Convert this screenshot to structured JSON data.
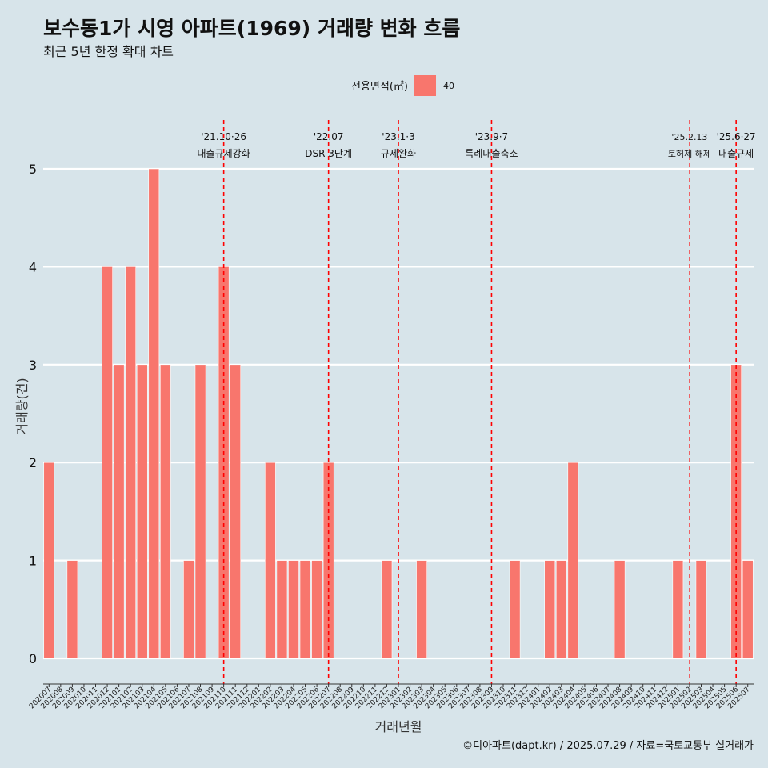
{
  "header": {
    "title": "보수동1가 시영 아파트(1969) 거래량 변화 흐름",
    "subtitle": "최근 5년 한정 확대 차트"
  },
  "legend": {
    "title": "전용면적(㎡)",
    "items": [
      {
        "label": "40",
        "color": "#f8766d"
      }
    ]
  },
  "caption": "©디아파트(dapt.kr) / 2025.07.29 / 자료=국토교통부 실거래가",
  "chart_data": {
    "type": "bar",
    "xlabel": "거래년월",
    "ylabel": "거래량(건)",
    "ylim": [
      0,
      5
    ],
    "yticks": [
      "0",
      "1",
      "2",
      "3",
      "4",
      "5"
    ],
    "grid": true,
    "legend_position": "top",
    "bar_color": "#f8766d",
    "categories": [
      "202007",
      "202008",
      "202009",
      "202010",
      "202011",
      "202012",
      "202101",
      "202102",
      "202103",
      "202104",
      "202105",
      "202106",
      "202107",
      "202108",
      "202109",
      "202110",
      "202111",
      "202112",
      "202201",
      "202202",
      "202203",
      "202204",
      "202205",
      "202206",
      "202207",
      "202208",
      "202209",
      "202210",
      "202211",
      "202212",
      "202301",
      "202302",
      "202303",
      "202304",
      "202305",
      "202306",
      "202307",
      "202308",
      "202309",
      "202310",
      "202311",
      "202312",
      "202401",
      "202402",
      "202403",
      "202404",
      "202405",
      "202406",
      "202407",
      "202408",
      "202409",
      "202410",
      "202411",
      "202412",
      "202501",
      "202502",
      "202503",
      "202504",
      "202505",
      "202506",
      "202507"
    ],
    "values": [
      2,
      0,
      1,
      0,
      0,
      4,
      3,
      4,
      3,
      5,
      3,
      0,
      1,
      3,
      0,
      4,
      3,
      0,
      0,
      2,
      1,
      1,
      1,
      1,
      2,
      0,
      0,
      0,
      0,
      1,
      0,
      0,
      1,
      0,
      0,
      0,
      0,
      0,
      0,
      0,
      1,
      0,
      0,
      1,
      1,
      2,
      0,
      0,
      0,
      1,
      0,
      0,
      0,
      0,
      1,
      0,
      1,
      0,
      0,
      3,
      1
    ],
    "annotations": [
      {
        "category": "202110",
        "date": "'21.10·26",
        "text": "대출규제강화",
        "style": "normal"
      },
      {
        "category": "202207",
        "date": "'22.07",
        "text": "DSR 3단계",
        "style": "normal"
      },
      {
        "category": "202301",
        "date": "'23.1·3",
        "text": "규제완화",
        "style": "normal"
      },
      {
        "category": "202309",
        "date": "'23.9·7",
        "text": "특례대출축소",
        "style": "normal"
      },
      {
        "category": "202502",
        "date": "'25.2.13",
        "text": "토허제 해제",
        "style": "small"
      },
      {
        "category": "202506",
        "date": "'25.6·27",
        "text": "대출규제",
        "style": "normal"
      }
    ],
    "annotation_color": "#ff0000"
  }
}
